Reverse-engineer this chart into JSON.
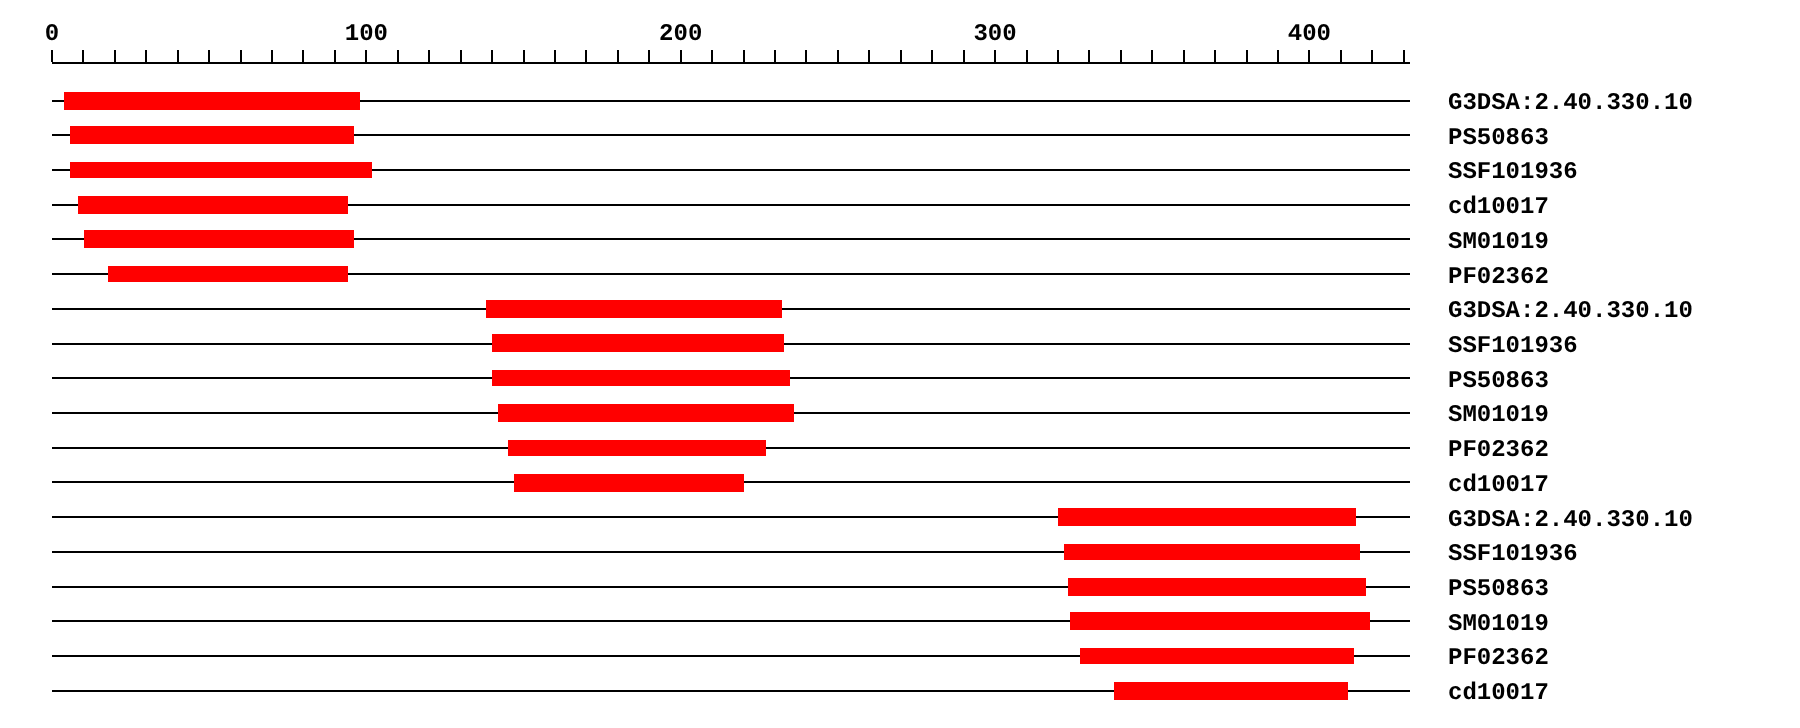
{
  "chart_data": {
    "type": "bar",
    "orientation": "horizontal",
    "categories": [
      "G3DSA:2.40.330.10",
      "PS50863",
      "SSF101936",
      "cd10017",
      "SM01019",
      "PF02362",
      "G3DSA:2.40.330.10",
      "SSF101936",
      "PS50863",
      "SM01019",
      "PF02362",
      "cd10017",
      "G3DSA:2.40.330.10",
      "SSF101936",
      "PS50863",
      "SM01019",
      "PF02362",
      "cd10017"
    ],
    "base": [
      4,
      6,
      6,
      8,
      10,
      18,
      138,
      140,
      140,
      142,
      145,
      147,
      320,
      322,
      323,
      324,
      327,
      338
    ],
    "values": [
      94,
      90,
      96,
      86,
      86,
      76,
      94,
      93,
      95,
      94,
      82,
      73,
      95,
      94,
      95,
      95,
      87,
      74
    ],
    "color": "#ff0000",
    "xlim": [
      0,
      432
    ],
    "xticks": [
      0,
      {
        "value": 10,
        "label": null
      },
      {
        "value": 20,
        "label": null
      },
      {
        "value": 30,
        "label": null
      },
      {
        "value": 40,
        "label": null
      },
      {
        "value": 50,
        "label": null
      },
      {
        "value": 60,
        "label": null
      },
      {
        "value": 70,
        "label": null
      },
      {
        "value": 80,
        "label": null
      },
      {
        "value": 90,
        "label": null
      },
      100,
      {
        "value": 110,
        "label": null
      },
      {
        "value": 120,
        "label": null
      },
      {
        "value": 130,
        "label": null
      },
      {
        "value": 140,
        "label": null
      },
      {
        "value": 150,
        "label": null
      },
      {
        "value": 160,
        "label": null
      },
      {
        "value": 170,
        "label": null
      },
      {
        "value": 180,
        "label": null
      },
      {
        "value": 190,
        "label": null
      },
      200,
      {
        "value": 210,
        "label": null
      },
      {
        "value": 220,
        "label": null
      },
      {
        "value": 230,
        "label": null
      },
      {
        "value": 240,
        "label": null
      },
      {
        "value": 250,
        "label": null
      },
      {
        "value": 260,
        "label": null
      },
      {
        "value": 270,
        "label": null
      },
      {
        "value": 280,
        "label": null
      },
      {
        "value": 290,
        "label": null
      },
      300,
      {
        "value": 310,
        "label": null
      },
      {
        "value": 320,
        "label": null
      },
      {
        "value": 330,
        "label": null
      },
      {
        "value": 340,
        "label": null
      },
      {
        "value": 350,
        "label": null
      },
      {
        "value": 360,
        "label": null
      },
      {
        "value": 370,
        "label": null
      },
      {
        "value": 380,
        "label": null
      },
      {
        "value": 390,
        "label": null
      },
      400,
      {
        "value": 410,
        "label": null
      },
      {
        "value": 420,
        "label": null
      },
      {
        "value": 430,
        "label": null
      }
    ],
    "grid": "y",
    "legend": false
  }
}
